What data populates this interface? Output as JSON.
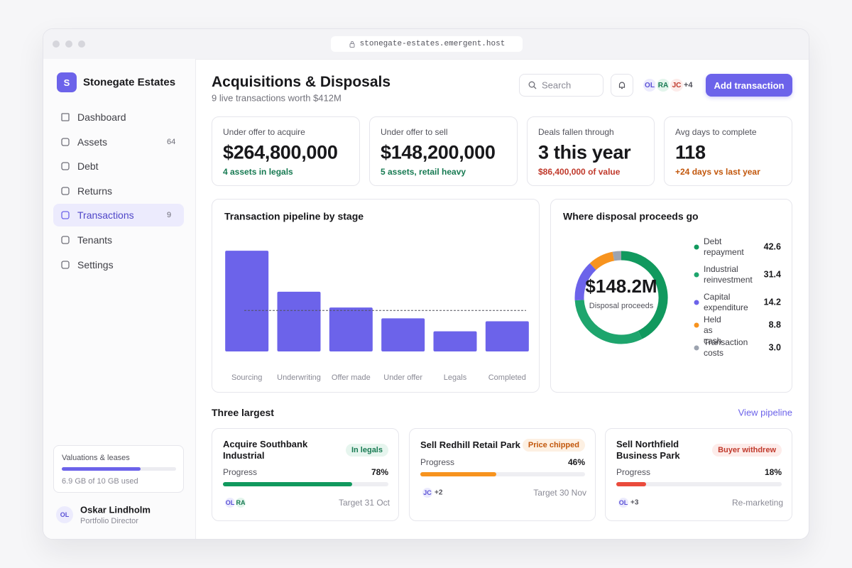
{
  "browser": {
    "url": "stonegate-estates.emergent.host"
  },
  "sidebar": {
    "brand_initial": "S",
    "brand": "Stonegate Estates",
    "nav": [
      {
        "label": "Dashboard"
      },
      {
        "label": "Assets",
        "count": 64
      },
      {
        "label": "Debt"
      },
      {
        "label": "Returns"
      },
      {
        "label": "Transactions",
        "count": 9,
        "active": true
      },
      {
        "label": "Tenants"
      },
      {
        "label": "Settings"
      }
    ],
    "storage": {
      "title": "Valuations & leases",
      "used": 6.9,
      "total": 10,
      "label": "6.9 GB of 10 GB used"
    },
    "user": {
      "initials": "OL",
      "name": "Oskar Lindholm",
      "role": "Portfolio Director"
    }
  },
  "header": {
    "title": "Acquisitions & Disposals",
    "subtitle": "9 live transactions worth $412M",
    "search_placeholder": "Search",
    "avatars": [
      "OL",
      "RA",
      "JC"
    ],
    "avatars_more": "+4",
    "button": "Add transaction"
  },
  "kpis": [
    {
      "label": "Under offer to acquire",
      "value": "$264,800,000",
      "note": "4 assets in legals",
      "tone": "green"
    },
    {
      "label": "Under offer to sell",
      "value": "$148,200,000",
      "note": "5 assets, retail heavy",
      "tone": "green"
    },
    {
      "label": "Deals fallen through",
      "value": "3 this year",
      "note": "$86,400,000 of value",
      "tone": "red"
    },
    {
      "label": "Avg days to complete",
      "value": "118",
      "note": "+24 days vs last year",
      "tone": "orange"
    }
  ],
  "chart_data": [
    {
      "type": "bar",
      "title": "Transaction pipeline by stage",
      "categories": [
        "Sourcing",
        "Underwriting",
        "Offer made",
        "Under offer",
        "Legals",
        "Completed"
      ],
      "values": [
        14,
        8.3,
        6.1,
        4.6,
        2.8,
        4.2
      ],
      "color": "#6c63ea",
      "ylim": [
        0,
        15
      ],
      "reference_line": 5.7
    },
    {
      "type": "donut",
      "title": "Where disposal proceeds go",
      "center_label": "$148.2M",
      "center_caption": "Disposal proceeds",
      "categories": [
        "Debt repayment",
        "Industrial reinvestment",
        "Capital expenditure",
        "Held as cash",
        "Transaction costs"
      ],
      "values": [
        42.6,
        31.4,
        14.2,
        8.8,
        3.0
      ],
      "value_labels": [
        "42.6",
        "31.4",
        "14.2",
        "8.8",
        "3.0"
      ],
      "colors": [
        "#11995e",
        "#1ea56d",
        "#6c63ea",
        "#f7931e",
        "#9ca3af"
      ]
    }
  ],
  "largest": {
    "title": "Three largest",
    "link": "View pipeline",
    "deals": [
      {
        "name": "Acquire Southbank Industrial",
        "status": "In legals",
        "tone": "green",
        "progress_title": "Progress",
        "progress": 78,
        "progress_label": "78%",
        "avatars": [
          "OL",
          "RA"
        ],
        "footer": "Target 31 Oct"
      },
      {
        "name": "Sell Redhill Retail Park",
        "status": "Price chipped",
        "tone": "orange",
        "progress_title": "Progress",
        "progress": 46,
        "progress_label": "46%",
        "avatars": [
          "JC"
        ],
        "avatars_more": "+2",
        "footer": "Target 30 Nov"
      },
      {
        "name": "Sell Northfield Business Park",
        "status": "Buyer withdrew",
        "tone": "red",
        "progress_title": "Progress",
        "progress": 18,
        "progress_label": "18%",
        "avatars": [
          "OL"
        ],
        "avatars_more": "+3",
        "footer": "Re-marketing"
      }
    ]
  }
}
